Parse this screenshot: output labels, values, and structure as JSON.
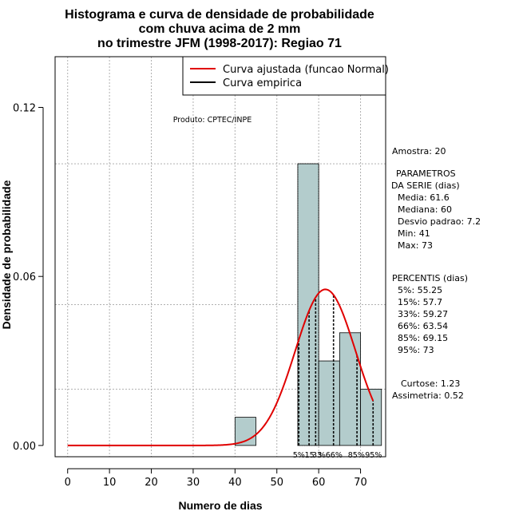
{
  "chart_data": {
    "type": "bar",
    "title_lines": [
      "Histograma e curva de densidade de probabilidade",
      "com chuva acima de 2 mm",
      "no trimestre JFM (1998-2017): Regiao 71"
    ],
    "xlabel": "Numero de dias",
    "ylabel": "Densidade de probabilidade",
    "xlim": [
      -3,
      76
    ],
    "ylim": [
      -0.004,
      0.138
    ],
    "x_ticks": [
      0,
      10,
      20,
      30,
      40,
      50,
      60,
      70
    ],
    "y_ticks": [
      0.0,
      0.06,
      0.12
    ],
    "y_tick_labels": [
      "0.00",
      "0.06",
      "0.12"
    ],
    "grid_x": [
      0,
      10,
      20,
      30,
      40,
      50,
      60,
      70
    ],
    "grid_y": [
      0.02,
      0.05,
      0.1
    ],
    "bins": [
      {
        "start": 40,
        "end": 45,
        "density": 0.01
      },
      {
        "start": 55,
        "end": 60,
        "density": 0.1
      },
      {
        "start": 60,
        "end": 65,
        "density": 0.03
      },
      {
        "start": 65,
        "end": 70,
        "density": 0.04
      },
      {
        "start": 70,
        "end": 75,
        "density": 0.02
      }
    ],
    "bar_color": "#b3cccc",
    "fitted_curve": {
      "name": "Curva ajustada (funcao Normal)",
      "mean": 61.6,
      "sd": 7.2,
      "x_start": 0,
      "x_end": 73,
      "color": "#e00000"
    },
    "empirical_curve": {
      "name": "Curva empirica",
      "color": "#000000"
    },
    "percentile_lines": [
      {
        "x": 55.25,
        "label": "5%"
      },
      {
        "x": 57.7,
        "label": "15%"
      },
      {
        "x": 59.27,
        "label": "33%"
      },
      {
        "x": 63.54,
        "label": "66%"
      },
      {
        "x": 69.15,
        "label": "85%"
      },
      {
        "x": 73,
        "label": "95%"
      }
    ],
    "percentile_axis_labels": [
      "5%",
      "15",
      "33",
      "%66%",
      "85%",
      "95%"
    ],
    "legend": {
      "placement": "top-right",
      "items": [
        "Curva ajustada (funcao Normal)",
        "Curva empirica"
      ]
    },
    "annotation": "Produto: CPTEC/INPE"
  },
  "sidebar": {
    "amostra": "Amostra: 20",
    "parametros_title": "PARAMETROS",
    "parametros_sub": "DA SERIE (dias)",
    "parametros": [
      "Media: 61.6",
      "Mediana: 60",
      "Desvio padrao: 7.2",
      "Min: 41",
      "Max: 73"
    ],
    "percentis_title": "PERCENTIS (dias)",
    "percentis": [
      "5%: 55.25",
      "15%: 57.7",
      "33%: 59.27",
      "66%: 63.54",
      "85%: 69.15",
      "95%: 73"
    ],
    "curtose": "Curtose: 1.23",
    "assimetria": "Assimetria: 0.52"
  }
}
